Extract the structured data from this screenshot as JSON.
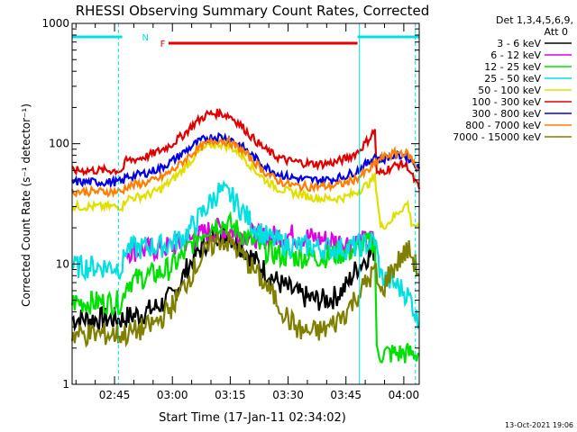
{
  "chart_data": {
    "type": "line",
    "title": "RHESSI Observing Summary Count Rates, Corrected",
    "xlabel": "Start Time (17-Jan-11 02:34:02)",
    "ylabel": "Corrected Count Rate (s⁻¹ detector⁻¹)",
    "y_scale": "log",
    "ylim": [
      1,
      1000
    ],
    "y_ticks": [
      1,
      10,
      100,
      1000
    ],
    "y_tick_labels": [
      "1",
      "10",
      "100",
      "1000"
    ],
    "x_range_min": [
      0,
      90
    ],
    "x_ticks_min": [
      11,
      26,
      41,
      56,
      71,
      86
    ],
    "x_tick_labels": [
      "02:45",
      "03:00",
      "03:15",
      "03:30",
      "03:45",
      "04:00"
    ],
    "legend_header": [
      "Det 1,3,4,5,6,9,",
      "Att 0"
    ],
    "legend_position": "right",
    "series": [
      {
        "name": "3 - 6 keV",
        "color": "#000000",
        "x": [
          0,
          13,
          14,
          17,
          20,
          23,
          26,
          28,
          30,
          33,
          36,
          38,
          41,
          44,
          47,
          50,
          53,
          56,
          59,
          62,
          65,
          68,
          71,
          74,
          77,
          78.5
        ],
        "y": [
          3.5,
          3.5,
          3.6,
          3.8,
          4.1,
          4.6,
          5.4,
          7.0,
          9.5,
          13,
          17,
          18,
          17,
          14,
          11,
          8.8,
          7.2,
          6.2,
          5.5,
          5.1,
          5.0,
          5.3,
          6.5,
          9.5,
          12,
          13
        ]
      },
      {
        "name": "6 - 12 keV",
        "color": "#e000e0",
        "x": [
          14,
          17,
          20,
          23,
          26,
          29,
          32,
          35,
          38,
          41,
          44,
          47,
          50,
          53,
          56,
          59,
          62,
          65,
          68,
          71,
          74,
          77,
          78.5
        ],
        "y": [
          13,
          13,
          13.2,
          13.5,
          14,
          15,
          16.5,
          18.5,
          19.5,
          19,
          18,
          17,
          16.5,
          17,
          17.5,
          17,
          16.5,
          16,
          15.5,
          15,
          15,
          15.5,
          16
        ]
      },
      {
        "name": "12 - 25 keV",
        "color": "#00e000",
        "x": [
          0,
          13,
          14,
          17,
          20,
          23,
          26,
          29,
          32,
          35,
          38,
          41,
          44,
          47,
          50,
          53,
          56,
          59,
          62,
          65,
          68,
          71,
          74,
          77,
          78.5,
          79,
          90
        ],
        "y": [
          4.8,
          4.8,
          7,
          7.5,
          8,
          8.5,
          9.5,
          12,
          16,
          20,
          22,
          21,
          18,
          15,
          13,
          12,
          11.5,
          11.5,
          11.5,
          11.5,
          12,
          12.5,
          13.5,
          15,
          15.5,
          1.8,
          1.8
        ]
      },
      {
        "name": "25 - 50 keV",
        "color": "#00e0e0",
        "x": [
          0,
          13,
          14,
          17,
          20,
          23,
          26,
          29,
          32,
          35,
          38,
          41,
          44,
          47,
          50,
          53,
          56,
          59,
          62,
          65,
          68,
          71,
          74,
          77,
          78.5,
          80,
          83,
          86,
          88,
          90
        ],
        "y": [
          9.5,
          9.5,
          13.5,
          13.5,
          14,
          14,
          15,
          17,
          22,
          30,
          40,
          37,
          28,
          21,
          17,
          15.5,
          14.5,
          14,
          14,
          13.5,
          13.5,
          13.5,
          14,
          15,
          16,
          8,
          7,
          6,
          5,
          3
        ]
      },
      {
        "name": "50 - 100 keV",
        "color": "#e0e000",
        "x": [
          0,
          13,
          14,
          17,
          20,
          23,
          26,
          29,
          32,
          35,
          38,
          41,
          44,
          47,
          50,
          53,
          56,
          59,
          62,
          65,
          68,
          71,
          74,
          77,
          78.5,
          80,
          82,
          85,
          87,
          88,
          90
        ],
        "y": [
          30,
          30,
          35,
          36,
          38,
          42,
          50,
          62,
          80,
          95,
          100,
          95,
          80,
          62,
          50,
          43,
          40,
          38,
          36,
          35,
          35,
          36,
          40,
          47,
          53,
          20,
          22,
          28,
          32,
          22,
          20
        ]
      },
      {
        "name": "100 - 300 keV",
        "color": "#e00000",
        "x": [
          0,
          13,
          14,
          17,
          20,
          23,
          26,
          29,
          32,
          35,
          38,
          41,
          44,
          47,
          50,
          53,
          56,
          59,
          62,
          65,
          68,
          71,
          74,
          77,
          78.5,
          79,
          82,
          85,
          87,
          88,
          90
        ],
        "y": [
          60,
          60,
          72,
          75,
          80,
          88,
          100,
          120,
          150,
          175,
          180,
          170,
          140,
          110,
          90,
          78,
          72,
          70,
          68,
          68,
          70,
          75,
          85,
          110,
          130,
          55,
          62,
          68,
          65,
          55,
          42
        ]
      },
      {
        "name": "300 - 800 keV",
        "color": "#0000e0",
        "x": [
          0,
          13,
          14,
          17,
          20,
          23,
          26,
          29,
          32,
          35,
          38,
          41,
          44,
          47,
          50,
          53,
          56,
          59,
          62,
          65,
          68,
          71,
          74,
          77,
          78.5,
          80,
          82,
          85,
          87,
          88,
          90
        ],
        "y": [
          48,
          48,
          53,
          55,
          58,
          63,
          72,
          85,
          100,
          112,
          115,
          110,
          95,
          78,
          65,
          57,
          53,
          51,
          50,
          50,
          51,
          54,
          60,
          70,
          80,
          72,
          78,
          80,
          78,
          72,
          62
        ]
      },
      {
        "name": "800 - 7000 keV",
        "color": "#ff8000",
        "x": [
          0,
          13,
          14,
          17,
          20,
          23,
          26,
          29,
          32,
          35,
          38,
          41,
          44,
          47,
          50,
          53,
          56,
          59,
          62,
          65,
          68,
          71,
          74,
          77,
          78.5,
          80,
          82,
          85,
          87,
          88,
          90
        ],
        "y": [
          40,
          40,
          44,
          46,
          48,
          52,
          60,
          72,
          88,
          100,
          108,
          102,
          88,
          72,
          58,
          50,
          46,
          44,
          44,
          44,
          45,
          47,
          52,
          60,
          68,
          75,
          80,
          85,
          82,
          75,
          60
        ]
      },
      {
        "name": "7000 - 15000 keV",
        "color": "#808000",
        "x": [
          0,
          13,
          14,
          17,
          20,
          23,
          26,
          29,
          32,
          35,
          38,
          41,
          44,
          47,
          50,
          53,
          56,
          59,
          62,
          65,
          68,
          71,
          74,
          77,
          78.5,
          80,
          82,
          85,
          87,
          88,
          90
        ],
        "y": [
          2.6,
          2.6,
          2.6,
          2.8,
          3.0,
          3.5,
          4.5,
          6.5,
          9.5,
          13,
          16,
          15,
          12,
          9.0,
          6.8,
          5.0,
          3.5,
          2.8,
          2.7,
          2.8,
          3.2,
          4.0,
          5.5,
          7.5,
          9.0,
          5.5,
          8,
          11,
          13,
          12,
          8
        ]
      }
    ],
    "vertical_markers_min": [
      0,
      12,
      74.5,
      89
    ],
    "top_bars": [
      {
        "label": "N",
        "color": "#00e0e0",
        "segments": [
          [
            0,
            13
          ],
          [
            74,
            90
          ]
        ],
        "label_at": 19
      },
      {
        "label": "F",
        "color": "#e00000",
        "segments": [
          [
            25,
            74
          ]
        ],
        "label_at": 23.5
      }
    ]
  },
  "footer_date": "13-Oct-2021 19:06"
}
